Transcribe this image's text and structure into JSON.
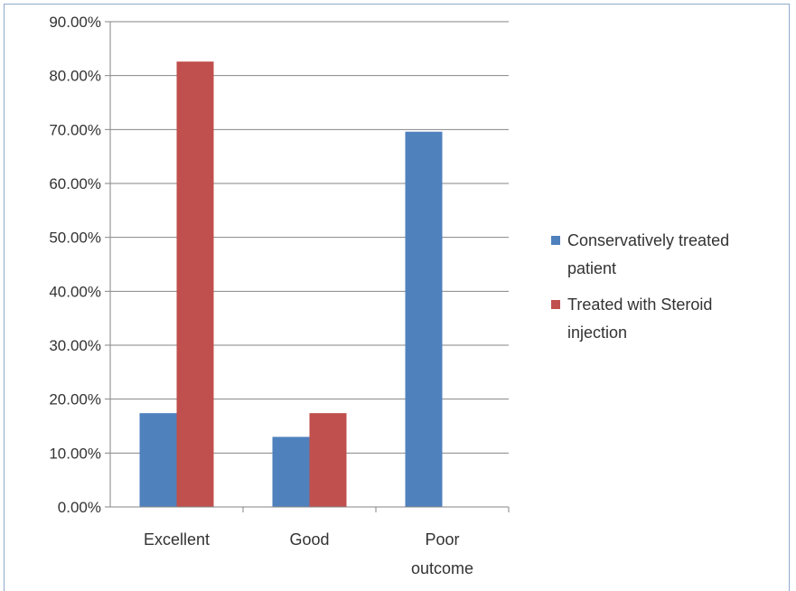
{
  "chart_data": {
    "type": "bar",
    "title": "",
    "xlabel": "",
    "ylabel": "",
    "categories": [
      [
        "Excellent"
      ],
      [
        "Good"
      ],
      [
        "Poor",
        "outcome"
      ]
    ],
    "series": [
      {
        "name": [
          "Conservatively treated",
          "patient"
        ],
        "color": "#4f81bd",
        "values": [
          17.4,
          13.0,
          69.6
        ]
      },
      {
        "name": [
          "Treated with Steroid",
          "injection"
        ],
        "color": "#c0504d",
        "values": [
          82.6,
          17.4,
          0
        ]
      }
    ],
    "ylim": [
      0,
      90
    ],
    "yticks": [
      "0.00%",
      "10.00%",
      "20.00%",
      "30.00%",
      "40.00%",
      "50.00%",
      "60.00%",
      "70.00%",
      "80.00%",
      "90.00%"
    ],
    "grid": true,
    "legend_position": "right"
  }
}
